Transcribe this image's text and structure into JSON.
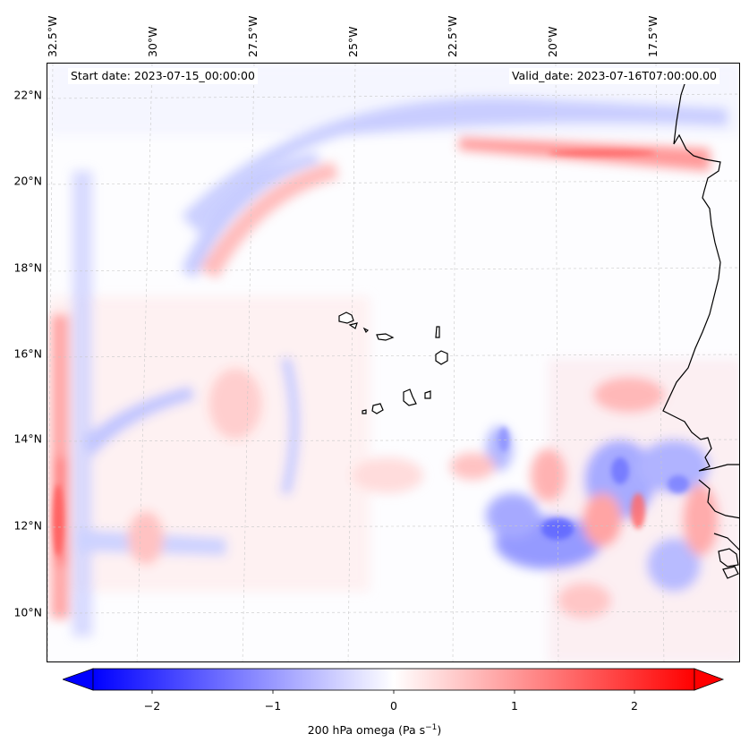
{
  "map": {
    "start_date": "Start date: 2023-07-15_00:00:00",
    "valid_date": "Valid_date: 2023-07-16T07:00:00.00",
    "lat_labels": [
      "22°N",
      "20°N",
      "18°N",
      "16°N",
      "14°N",
      "12°N",
      "10°N"
    ],
    "lon_labels": [
      "32.5°W",
      "30°W",
      "27.5°W",
      "25°W",
      "22.5°W",
      "20°W",
      "17.5°W"
    ],
    "lon_range": [
      -33,
      -15.5
    ],
    "lat_range": [
      8.8,
      22.8
    ],
    "gridlines": true,
    "coastline_color": "#000000"
  },
  "colorbar": {
    "label_main": "200 hPa omega (Pa s",
    "label_sup": "−1",
    "label_end": ")",
    "ticks": [
      "−2",
      "−1",
      "0",
      "1",
      "2"
    ],
    "tick_values": [
      -2,
      -1,
      0,
      1,
      2
    ],
    "range": [
      -2.5,
      2.5
    ],
    "extend": "both",
    "colormap": "bwr",
    "low_color": "#0000ff",
    "mid_color": "#ffffff",
    "high_color": "#ff0000"
  },
  "chart_data": {
    "type": "heatmap",
    "title": "",
    "xlabel": "",
    "ylabel": "",
    "variable": "200 hPa omega",
    "units": "Pa s−1",
    "xlim": [
      -33,
      -15.5
    ],
    "ylim": [
      8.8,
      22.8
    ],
    "clim": [
      -2.5,
      2.5
    ]
  }
}
